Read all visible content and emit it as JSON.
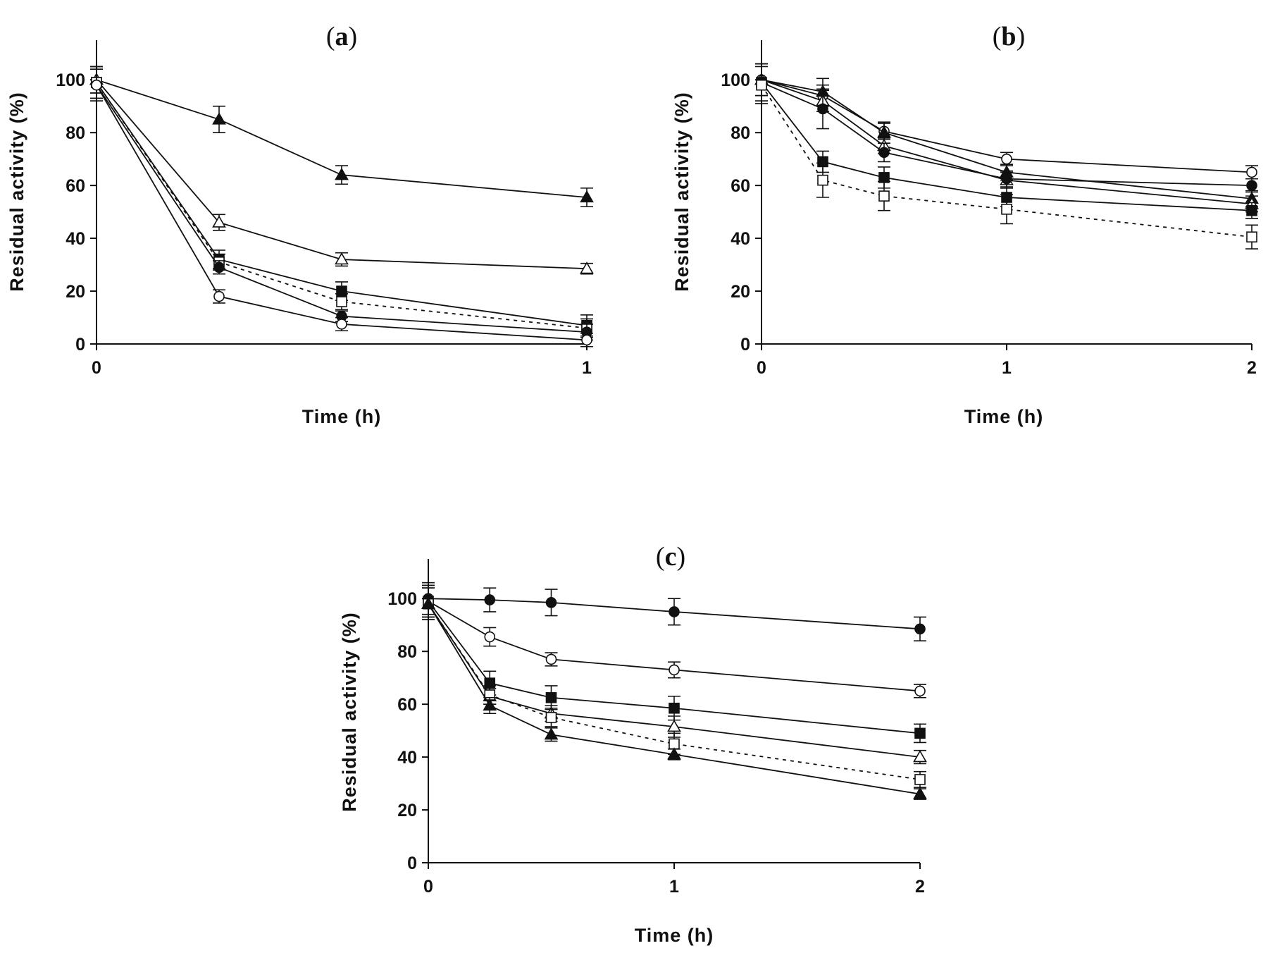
{
  "figure": {
    "marker_legend": {
      "filled-circle": "●",
      "open-circle": "○",
      "filled-triangle": "▲",
      "open-triangle": "△",
      "filled-square": "■",
      "open-square": "□"
    },
    "line_color": "#111111"
  },
  "chart_data": [
    {
      "id": "a",
      "type": "line",
      "title_paren_open": "(",
      "title_letter": "a",
      "title_paren_close": ")",
      "xlabel": "Time (h)",
      "ylabel": "Residual activity (%)",
      "xlim": [
        0,
        1
      ],
      "ylim": [
        0,
        115
      ],
      "xticks": [
        0,
        1
      ],
      "xtick_labels": [
        "0",
        "1"
      ],
      "yticks": [
        0,
        20,
        40,
        60,
        80,
        100
      ],
      "ytick_labels": [
        "0",
        "20",
        "40",
        "60",
        "80",
        "100"
      ],
      "grid": false,
      "legend": "none",
      "series": [
        {
          "name": "filled-triangle",
          "marker": "filled-triangle",
          "dashed": false,
          "x": [
            0,
            0.25,
            0.5,
            1
          ],
          "y": [
            100,
            85,
            64,
            55.5
          ],
          "err": [
            5,
            5,
            3.5,
            3.5
          ]
        },
        {
          "name": "open-triangle",
          "marker": "open-triangle",
          "dashed": false,
          "x": [
            0,
            0.25,
            0.5,
            1
          ],
          "y": [
            100,
            46,
            32,
            28.5
          ],
          "err": [
            5,
            3,
            2.5,
            2
          ]
        },
        {
          "name": "filled-square",
          "marker": "filled-square",
          "dashed": false,
          "x": [
            0,
            0.25,
            0.5,
            1
          ],
          "y": [
            99,
            32,
            20,
            7
          ],
          "err": [
            6,
            3.5,
            3.5,
            4
          ]
        },
        {
          "name": "open-square",
          "marker": "open-square",
          "dashed": true,
          "x": [
            0,
            0.25,
            0.5,
            1
          ],
          "y": [
            99,
            31,
            16,
            6
          ],
          "err": [
            6,
            3,
            3,
            3.5
          ]
        },
        {
          "name": "filled-circle",
          "marker": "filled-circle",
          "dashed": false,
          "x": [
            0,
            0.25,
            0.5,
            1
          ],
          "y": [
            98,
            29,
            10.5,
            4.5
          ],
          "err": [
            6,
            2.5,
            2,
            3
          ]
        },
        {
          "name": "open-circle",
          "marker": "open-circle",
          "dashed": false,
          "x": [
            0,
            0.25,
            0.5,
            1
          ],
          "y": [
            98,
            18,
            7.5,
            1.5
          ],
          "err": [
            6,
            2.5,
            2.5,
            2.5
          ]
        }
      ]
    },
    {
      "id": "b",
      "type": "line",
      "title_paren_open": "(",
      "title_letter": "b",
      "title_paren_close": ")",
      "xlabel": "Time (h)",
      "ylabel": "Residual activity (%)",
      "xlim": [
        0,
        2
      ],
      "ylim": [
        0,
        115
      ],
      "xticks": [
        0,
        1,
        2
      ],
      "xtick_labels": [
        "0",
        "1",
        "2"
      ],
      "yticks": [
        0,
        20,
        40,
        60,
        80,
        100
      ],
      "ytick_labels": [
        "0",
        "20",
        "40",
        "60",
        "80",
        "100"
      ],
      "grid": false,
      "legend": "none",
      "series": [
        {
          "name": "open-circle",
          "marker": "open-circle",
          "dashed": false,
          "x": [
            0,
            0.25,
            0.5,
            1,
            2
          ],
          "y": [
            100,
            94,
            80.5,
            70,
            65
          ],
          "err": [
            6,
            4,
            3,
            2.5,
            2.5
          ]
        },
        {
          "name": "filled-triangle",
          "marker": "filled-triangle",
          "dashed": false,
          "x": [
            0,
            0.25,
            0.5,
            1,
            2
          ],
          "y": [
            100,
            95.5,
            80,
            65,
            55
          ],
          "err": [
            6,
            5,
            4,
            3,
            3
          ]
        },
        {
          "name": "open-triangle",
          "marker": "open-triangle",
          "dashed": false,
          "x": [
            0,
            0.25,
            0.5,
            1,
            2
          ],
          "y": [
            100,
            92,
            75,
            62,
            53
          ],
          "err": [
            6,
            4,
            3,
            3,
            3
          ]
        },
        {
          "name": "filled-circle",
          "marker": "filled-circle",
          "dashed": false,
          "x": [
            0,
            0.25,
            0.5,
            1,
            2
          ],
          "y": [
            99,
            89,
            72.5,
            62.5,
            60
          ],
          "err": [
            7,
            7.5,
            3.5,
            3,
            2.5
          ]
        },
        {
          "name": "filled-square",
          "marker": "filled-square",
          "dashed": false,
          "x": [
            0,
            0.25,
            0.5,
            1,
            2
          ],
          "y": [
            99,
            69,
            63,
            55.5,
            50.5
          ],
          "err": [
            7,
            4,
            4,
            3.5,
            3
          ]
        },
        {
          "name": "open-square",
          "marker": "open-square",
          "dashed": true,
          "x": [
            0,
            0.25,
            0.5,
            1,
            2
          ],
          "y": [
            98,
            62,
            56,
            51,
            40.5
          ],
          "err": [
            7,
            6.5,
            5.5,
            5.5,
            4.5
          ]
        }
      ]
    },
    {
      "id": "c",
      "type": "line",
      "title_paren_open": "(",
      "title_letter": "c",
      "title_paren_close": ")",
      "xlabel": "Time (h)",
      "ylabel": "Residual activity (%)",
      "xlim": [
        0,
        2
      ],
      "ylim": [
        0,
        115
      ],
      "xticks": [
        0,
        1,
        2
      ],
      "xtick_labels": [
        "0",
        "1",
        "2"
      ],
      "yticks": [
        0,
        20,
        40,
        60,
        80,
        100
      ],
      "ytick_labels": [
        "0",
        "20",
        "40",
        "60",
        "80",
        "100"
      ],
      "grid": false,
      "legend": "none",
      "series": [
        {
          "name": "filled-circle",
          "marker": "filled-circle",
          "dashed": false,
          "x": [
            0,
            0.25,
            0.5,
            1,
            2
          ],
          "y": [
            100,
            99.5,
            98.5,
            95,
            88.5
          ],
          "err": [
            6,
            4.5,
            5,
            5,
            4.5
          ]
        },
        {
          "name": "open-circle",
          "marker": "open-circle",
          "dashed": false,
          "x": [
            0,
            0.25,
            0.5,
            1,
            2
          ],
          "y": [
            99,
            85.5,
            77,
            73,
            65
          ],
          "err": [
            6,
            3.5,
            2.5,
            3,
            2.5
          ]
        },
        {
          "name": "filled-square",
          "marker": "filled-square",
          "dashed": false,
          "x": [
            0,
            0.25,
            0.5,
            1,
            2
          ],
          "y": [
            99,
            68,
            62.5,
            58.5,
            49
          ],
          "err": [
            6,
            4.5,
            4.5,
            4.5,
            3.5
          ]
        },
        {
          "name": "open-triangle",
          "marker": "open-triangle",
          "dashed": false,
          "x": [
            0,
            0.25,
            0.5,
            1,
            2
          ],
          "y": [
            98,
            63,
            56.5,
            51.5,
            40
          ],
          "err": [
            6,
            3,
            3,
            4,
            2.5
          ]
        },
        {
          "name": "open-square",
          "marker": "open-square",
          "dashed": true,
          "x": [
            0,
            0.25,
            0.5,
            1,
            2
          ],
          "y": [
            98,
            63.5,
            55,
            45,
            31.5
          ],
          "err": [
            6,
            3.5,
            3.5,
            4,
            3
          ]
        },
        {
          "name": "filled-triangle",
          "marker": "filled-triangle",
          "dashed": false,
          "x": [
            0,
            0.25,
            0.5,
            1,
            2
          ],
          "y": [
            98,
            59.5,
            48.5,
            41,
            26
          ],
          "err": [
            6,
            3,
            2.5,
            2,
            2
          ]
        }
      ]
    }
  ]
}
